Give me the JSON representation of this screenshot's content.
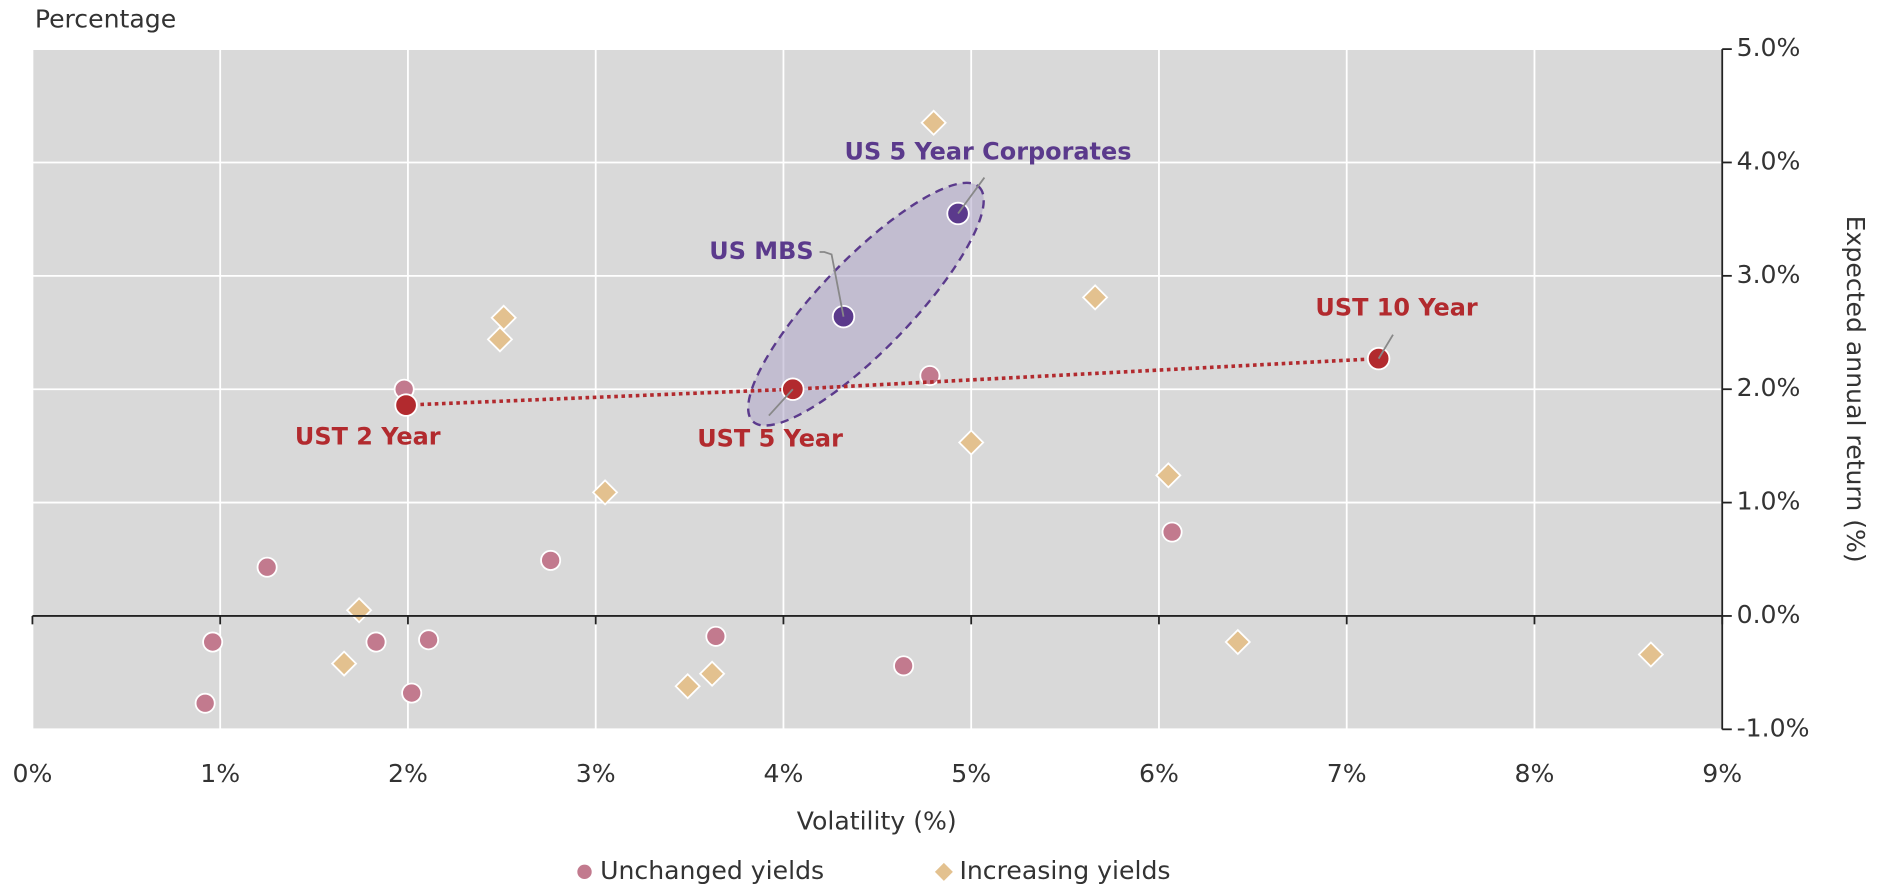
{
  "chart_data": {
    "type": "scatter",
    "title": "Percentage",
    "xlabel": "Volatility (%)",
    "ylabel": "Expected annual return (%)",
    "xlim": [
      0,
      9
    ],
    "ylim": [
      -1,
      5
    ],
    "xticks": [
      {
        "value": 0,
        "label": "0%"
      },
      {
        "value": 1,
        "label": "1%"
      },
      {
        "value": 2,
        "label": "2%"
      },
      {
        "value": 3,
        "label": "3%"
      },
      {
        "value": 4,
        "label": "4%"
      },
      {
        "value": 5,
        "label": "5%"
      },
      {
        "value": 6,
        "label": "6%"
      },
      {
        "value": 7,
        "label": "7%"
      },
      {
        "value": 8,
        "label": "8%"
      },
      {
        "value": 9,
        "label": "9%"
      }
    ],
    "yticks": [
      {
        "value": -1,
        "label": "-1.0%"
      },
      {
        "value": 0,
        "label": "0.0%"
      },
      {
        "value": 1,
        "label": "1.0%"
      },
      {
        "value": 2,
        "label": "2.0%"
      },
      {
        "value": 3,
        "label": "3.0%"
      },
      {
        "value": 4,
        "label": "4.0%"
      },
      {
        "value": 5,
        "label": "5.0%"
      }
    ],
    "grid": true,
    "legend": "bottom",
    "series": [
      {
        "name": "Unchanged yields",
        "color": "#c27a8e",
        "marker": "circle",
        "x": [
          1.25,
          0.96,
          0.92,
          1.83,
          2.11,
          2.02,
          1.98,
          2.76,
          3.64,
          4.64,
          4.78,
          6.07
        ],
        "values": [
          0.43,
          -0.23,
          -0.77,
          -0.23,
          -0.21,
          -0.68,
          2.0,
          0.49,
          -0.18,
          -0.44,
          2.12,
          0.74
        ]
      },
      {
        "name": "Increasing yields",
        "color": "#e3c18f",
        "marker": "diamond",
        "x": [
          4.8,
          2.51,
          2.49,
          5.66,
          5.0,
          6.05,
          3.05,
          1.74,
          1.66,
          3.49,
          3.62,
          6.42,
          8.62
        ],
        "values": [
          4.35,
          2.63,
          2.44,
          2.81,
          1.53,
          1.24,
          1.09,
          0.05,
          -0.42,
          -0.62,
          -0.51,
          -0.23,
          -0.34
        ]
      }
    ],
    "annotations": [
      {
        "label": "UST 2 Year",
        "x": 1.99,
        "y": 1.86,
        "color": "#b22a2e"
      },
      {
        "label": "UST 5 Year",
        "x": 4.05,
        "y": 2.0,
        "color": "#b22a2e"
      },
      {
        "label": "UST 10 Year",
        "x": 7.17,
        "y": 2.27,
        "color": "#b22a2e"
      },
      {
        "label": "US MBS",
        "x": 4.32,
        "y": 2.64,
        "color": "#5b3a8c"
      },
      {
        "label": "US 5 Year Corporates",
        "x": 4.93,
        "y": 3.55,
        "color": "#5b3a8c"
      }
    ]
  }
}
